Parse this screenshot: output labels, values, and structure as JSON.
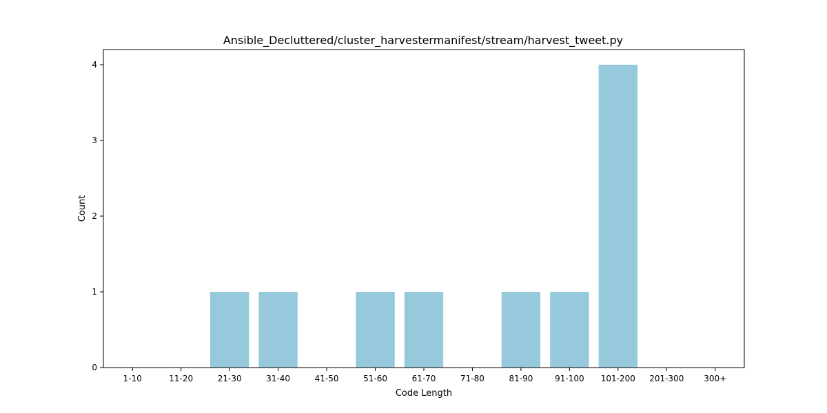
{
  "chart_data": {
    "type": "bar",
    "title": "Ansible_Decluttered/cluster_harvestermanifest/stream/harvest_tweet.py",
    "xlabel": "Code Length",
    "ylabel": "Count",
    "categories": [
      "1-10",
      "11-20",
      "21-30",
      "31-40",
      "41-50",
      "51-60",
      "61-70",
      "71-80",
      "81-90",
      "91-100",
      "101-200",
      "201-300",
      "300+"
    ],
    "values": [
      0,
      0,
      1,
      1,
      0,
      1,
      1,
      0,
      1,
      1,
      4,
      0,
      0
    ],
    "yticks": [
      0,
      1,
      2,
      3,
      4
    ],
    "ylim": [
      0,
      4.2
    ],
    "bar_color": "#96c9dc",
    "grid": false,
    "legend": "none"
  }
}
